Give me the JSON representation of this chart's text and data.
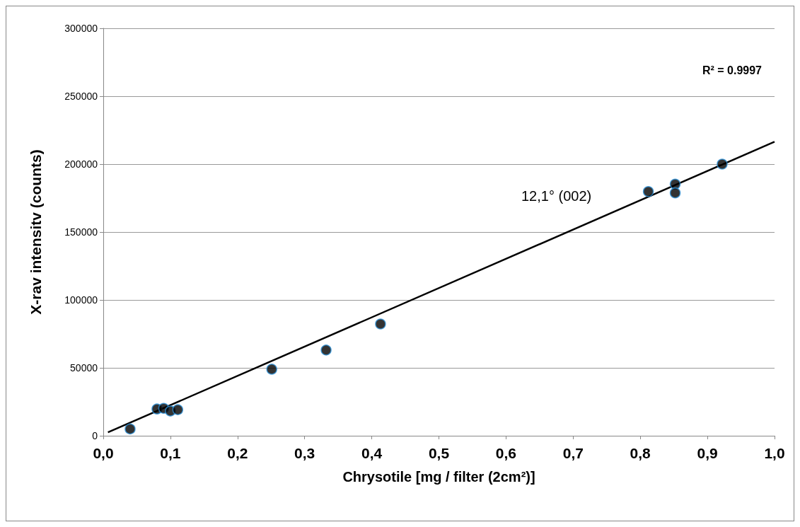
{
  "chart_data": {
    "type": "scatter",
    "xlabel": "Chrysotile [mg / filter (2cm²)]",
    "ylabel": "X-rav intensitv (counts)",
    "series": [
      {
        "color": "#000000",
        "x": [
          0.04,
          0.08,
          0.09,
          0.1,
          0.111,
          0.251,
          0.332,
          0.413,
          0.812,
          0.852,
          0.852,
          0.922
        ],
        "values": [
          5000,
          19700,
          20200,
          18200,
          19200,
          49000,
          63100,
          82300,
          179800,
          185300,
          178800,
          200000
        ]
      },
      {
        "type": "line",
        "color": "#000000",
        "marker": "none",
        "x": [
          0.007,
          1.0
        ],
        "values": [
          2500,
          216500
        ]
      }
    ],
    "xlim": [
      0,
      1
    ],
    "xticks": [
      {
        "value": 0,
        "label": "0,0"
      },
      {
        "value": 0.1,
        "label": "0,1"
      },
      {
        "value": 0.2,
        "label": "0,2"
      },
      {
        "value": 0.3,
        "label": "0,3"
      },
      {
        "value": 0.4,
        "label": "0,4"
      },
      {
        "value": 0.5,
        "label": "0,5"
      },
      {
        "value": 0.6,
        "label": "0,6"
      },
      {
        "value": 0.7,
        "label": "0,7"
      },
      {
        "value": 0.8,
        "label": "0,8"
      },
      {
        "value": 0.9,
        "label": "0,9"
      },
      {
        "value": 1,
        "label": "1,0"
      }
    ],
    "ylim": [
      0,
      300000
    ],
    "yticks": [
      0,
      50000,
      100000,
      150000,
      200000,
      250000,
      300000
    ],
    "grid": "y",
    "marker": "circle",
    "annotations": [
      "R² = 0.9997",
      "12,1° (002)"
    ]
  }
}
